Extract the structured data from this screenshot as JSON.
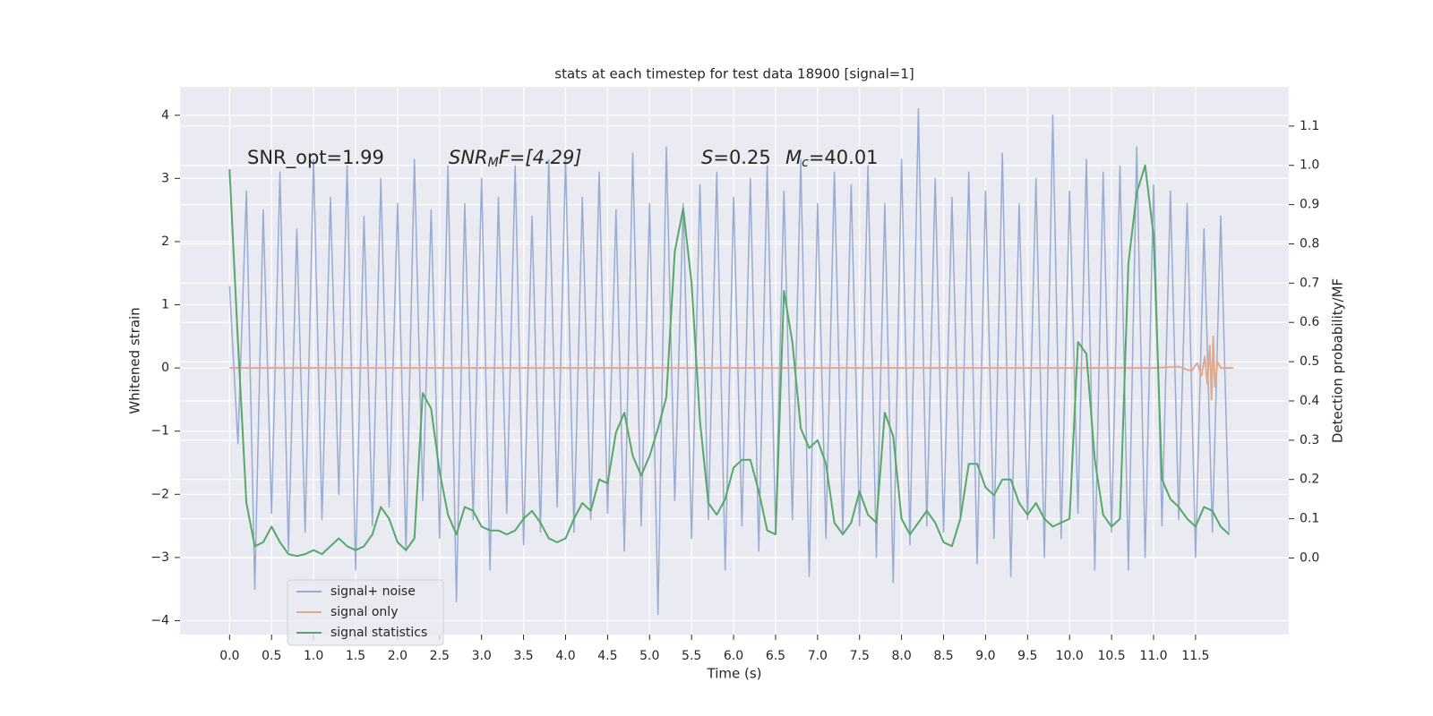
{
  "chart_data": {
    "type": "line",
    "title": "stats at each timestep for test data 18900 [signal=1]",
    "xlabel": "Time (s)",
    "ylabel": "Whitened strain",
    "y2label": "Detection probability/MF",
    "annotations": [
      {
        "text": "SNR_opt=1.99"
      },
      {
        "base": "SNR",
        "sub": "M",
        "rest": "F=[4.29]"
      },
      {
        "base": "S",
        "rest": "=0.25"
      },
      {
        "base": "M",
        "sub": "c",
        "rest": "=40.01"
      }
    ],
    "grid": true,
    "legend": "lower left",
    "xlim": [
      -0.59,
      12.61
    ],
    "ylim": [
      -4.22,
      4.45
    ],
    "y2lim": [
      -0.195,
      1.2
    ],
    "xticks": [
      {
        "value": 0,
        "label": "0.0"
      },
      0.5,
      {
        "value": 1,
        "label": "1.0"
      },
      1.5,
      {
        "value": 2,
        "label": "2.0"
      },
      2.5,
      {
        "value": 3,
        "label": "3.0"
      },
      3.5,
      {
        "value": 4,
        "label": "4.0"
      },
      4.5,
      {
        "value": 5,
        "label": "5.0"
      },
      5.5,
      {
        "value": 6,
        "label": "6.0"
      },
      6.5,
      {
        "value": 7,
        "label": "7.0"
      },
      7.5,
      {
        "value": 8,
        "label": "8.0"
      },
      8.5,
      {
        "value": 9,
        "label": "9.0"
      },
      9.5,
      {
        "value": 10,
        "label": "10.0"
      },
      10.5,
      {
        "value": 11,
        "label": "11.0"
      },
      11.5
    ],
    "yticks": [
      {
        "value": -4,
        "label": "−4"
      },
      {
        "value": -3,
        "label": "−3"
      },
      {
        "value": -2,
        "label": "−2"
      },
      {
        "value": -1,
        "label": "−1"
      },
      0,
      1,
      2,
      3,
      4
    ],
    "y2ticks": [
      {
        "value": 0,
        "label": "0.0"
      },
      0.1,
      0.2,
      0.3,
      0.4,
      0.5,
      0.6,
      0.7,
      0.8,
      0.9,
      {
        "value": 1,
        "label": "1.0"
      },
      1.1
    ],
    "x": [
      0.0,
      0.1,
      0.2,
      0.3,
      0.4,
      0.5,
      0.6,
      0.7,
      0.8,
      0.9,
      1.0,
      1.1,
      1.2,
      1.3,
      1.4,
      1.5,
      1.6,
      1.7,
      1.8,
      1.9,
      2.0,
      2.1,
      2.2,
      2.3,
      2.4,
      2.5,
      2.6,
      2.7,
      2.8,
      2.9,
      3.0,
      3.1,
      3.2,
      3.3,
      3.4,
      3.5,
      3.6,
      3.7,
      3.8,
      3.9,
      4.0,
      4.1,
      4.2,
      4.3,
      4.4,
      4.5,
      4.6,
      4.7,
      4.8,
      4.9,
      5.0,
      5.1,
      5.2,
      5.3,
      5.4,
      5.5,
      5.6,
      5.7,
      5.8,
      5.9,
      6.0,
      6.1,
      6.2,
      6.3,
      6.4,
      6.5,
      6.6,
      6.7,
      6.8,
      6.9,
      7.0,
      7.1,
      7.2,
      7.3,
      7.4,
      7.5,
      7.6,
      7.7,
      7.8,
      7.9,
      8.0,
      8.1,
      8.2,
      8.3,
      8.4,
      8.5,
      8.6,
      8.7,
      8.8,
      8.9,
      9.0,
      9.1,
      9.2,
      9.3,
      9.4,
      9.5,
      9.6,
      9.7,
      9.8,
      9.9,
      10.0,
      10.1,
      10.2,
      10.3,
      10.4,
      10.5,
      10.6,
      10.7,
      10.8,
      10.9,
      11.0,
      11.1,
      11.2,
      11.3,
      11.4,
      11.5,
      11.6,
      11.7,
      11.8,
      11.9
    ],
    "series": [
      {
        "name": "signal+ noise",
        "color": "#98abd1",
        "values": [
          1.3,
          -1.2,
          2.8,
          -3.5,
          2.5,
          -2.3,
          3.1,
          -2.9,
          2.2,
          -2.6,
          3.3,
          -2.4,
          2.7,
          -2.0,
          3.2,
          -3.2,
          2.4,
          -2.5,
          3.0,
          -2.2,
          2.6,
          -2.9,
          3.3,
          -2.1,
          2.5,
          -2.7,
          3.2,
          -3.7,
          2.6,
          -2.4,
          3.0,
          -3.2,
          2.7,
          -2.3,
          3.2,
          -2.8,
          2.4,
          -2.6,
          3.3,
          -2.2,
          3.3,
          -2.6,
          2.7,
          -2.4,
          3.1,
          -2.3,
          2.5,
          -2.9,
          3.4,
          -2.5,
          2.6,
          -3.9,
          3.5,
          -2.1,
          2.6,
          -2.7,
          2.9,
          -2.4,
          3.1,
          -3.2,
          2.7,
          -2.5,
          3.0,
          -2.9,
          3.2,
          -2.6,
          2.8,
          -2.4,
          3.3,
          -3.3,
          2.6,
          -2.7,
          3.1,
          -2.6,
          2.9,
          -2.5,
          3.2,
          -3.0,
          2.6,
          -3.4,
          3.3,
          -2.8,
          4.1,
          -2.5,
          3.0,
          -2.6,
          2.7,
          -2.4,
          3.1,
          -3.1,
          2.8,
          -2.7,
          3.4,
          -3.3,
          2.6,
          -2.4,
          3.0,
          -3.0,
          4.0,
          -2.7,
          2.8,
          -2.3,
          3.3,
          -3.2,
          3.1,
          -2.6,
          3.2,
          -3.2,
          3.5,
          -3.0,
          2.9,
          -2.5,
          2.8,
          -2.4,
          2.6,
          -3.0,
          2.2,
          -2.6,
          2.4,
          -2.6
        ]
      },
      {
        "name": "signal only",
        "color": "#e3a98b",
        "x": [
          0,
          11.0,
          11.3,
          11.45,
          11.52,
          11.57,
          11.61,
          11.64,
          11.67,
          11.69,
          11.71,
          11.73,
          11.76,
          11.8,
          11.95
        ],
        "values": [
          0,
          0,
          0.02,
          -0.05,
          0.08,
          -0.12,
          0.18,
          -0.25,
          0.35,
          -0.5,
          0.5,
          -0.3,
          0.1,
          0,
          0
        ]
      },
      {
        "name": "signal statistics",
        "color": "#55a868",
        "axis": "y2",
        "values": [
          0.99,
          0.55,
          0.14,
          0.03,
          0.04,
          0.08,
          0.04,
          0.01,
          0.005,
          0.01,
          0.02,
          0.01,
          0.03,
          0.05,
          0.03,
          0.02,
          0.03,
          0.06,
          0.13,
          0.1,
          0.04,
          0.02,
          0.05,
          0.42,
          0.38,
          0.22,
          0.11,
          0.06,
          0.13,
          0.12,
          0.08,
          0.07,
          0.07,
          0.06,
          0.07,
          0.1,
          0.12,
          0.09,
          0.05,
          0.04,
          0.05,
          0.1,
          0.14,
          0.12,
          0.2,
          0.19,
          0.32,
          0.37,
          0.26,
          0.21,
          0.26,
          0.33,
          0.41,
          0.78,
          0.89,
          0.7,
          0.35,
          0.14,
          0.11,
          0.15,
          0.23,
          0.25,
          0.25,
          0.17,
          0.07,
          0.06,
          0.68,
          0.55,
          0.33,
          0.28,
          0.3,
          0.24,
          0.09,
          0.06,
          0.09,
          0.17,
          0.11,
          0.09,
          0.37,
          0.31,
          0.1,
          0.06,
          0.09,
          0.12,
          0.09,
          0.04,
          0.03,
          0.1,
          0.24,
          0.24,
          0.18,
          0.16,
          0.2,
          0.2,
          0.14,
          0.11,
          0.14,
          0.1,
          0.08,
          0.09,
          0.1,
          0.55,
          0.52,
          0.25,
          0.11,
          0.08,
          0.1,
          0.75,
          0.93,
          1.0,
          0.82,
          0.2,
          0.15,
          0.13,
          0.1,
          0.08,
          0.13,
          0.12,
          0.08,
          0.06
        ]
      }
    ]
  }
}
